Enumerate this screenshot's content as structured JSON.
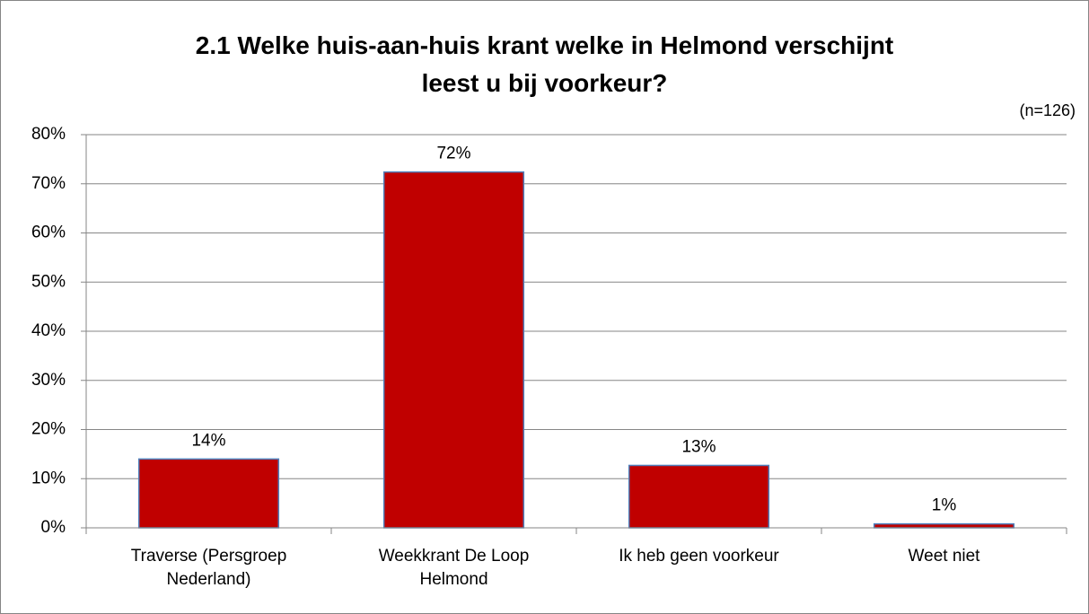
{
  "chart_data": {
    "type": "bar",
    "title": [
      "2.1 Welke huis-aan-huis krant welke in Helmond verschijnt",
      "leest u bij voorkeur?"
    ],
    "annotation": "(n=126)",
    "categories": [
      "Traverse (Persgroep Nederland)",
      "Weekkrant De Loop Helmond",
      "Ik heb geen voorkeur",
      "Weet niet"
    ],
    "values": [
      14,
      72.4,
      12.7,
      0.8
    ],
    "value_labels": [
      "14%",
      "72%",
      "13%",
      "1%"
    ],
    "color": "#c00000",
    "ylim": [
      0,
      80
    ],
    "yticks": [
      {
        "value": 0,
        "label": "0%"
      },
      {
        "value": 10,
        "label": "10%"
      },
      {
        "value": 20,
        "label": "20%"
      },
      {
        "value": 30,
        "label": "30%"
      },
      {
        "value": 40,
        "label": "40%"
      },
      {
        "value": 50,
        "label": "50%"
      },
      {
        "value": 60,
        "label": "60%"
      },
      {
        "value": 70,
        "label": "70%"
      },
      {
        "value": 80,
        "label": "80%"
      }
    ],
    "grid": true
  }
}
